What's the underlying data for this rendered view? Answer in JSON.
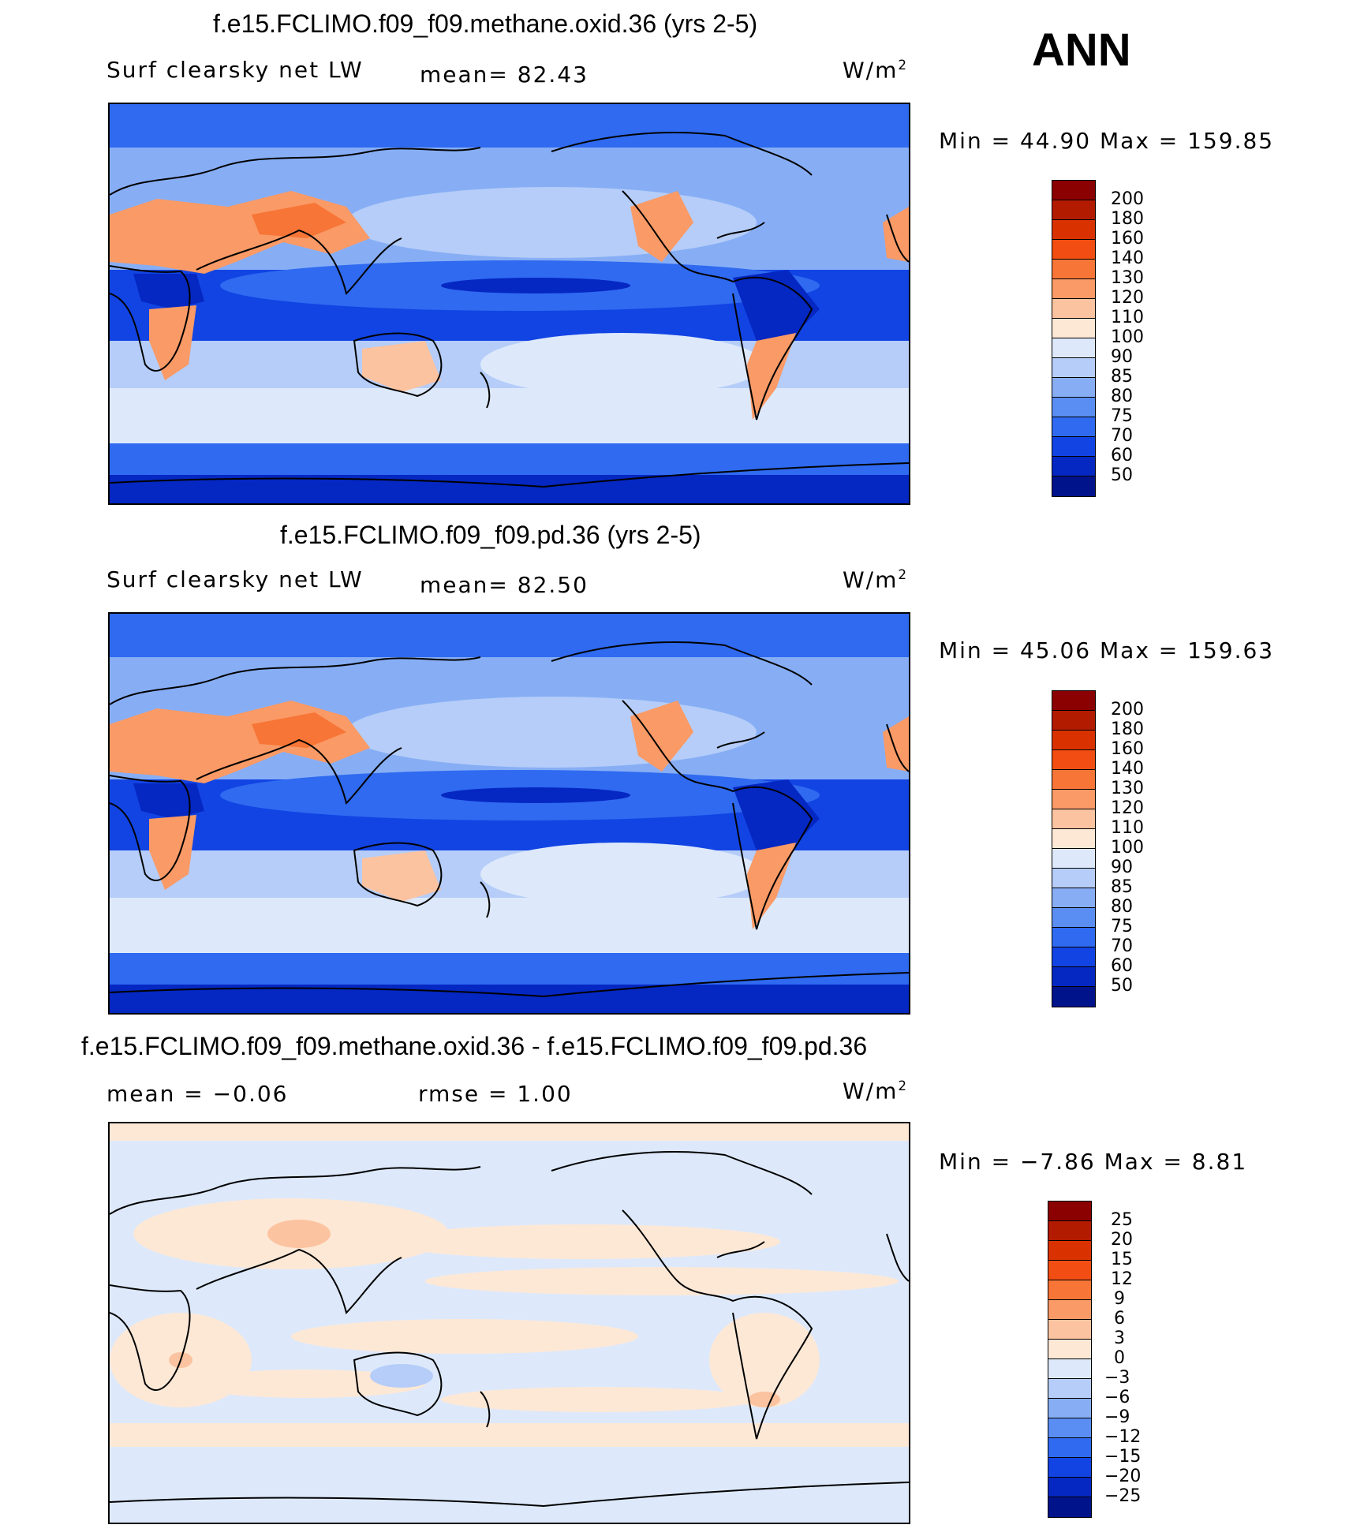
{
  "season": "ANN",
  "panels": [
    {
      "title": "f.e15.FCLIMO.f09_f09.methane.oxid.36 (yrs 2-5)",
      "left_label": "Surf clearsky net LW",
      "stat1": "mean=   82.43",
      "units": "W/m",
      "units_exp": "2",
      "minmax": "Min  =    44.90  Max  =  159.85"
    },
    {
      "title": "f.e15.FCLIMO.f09_f09.pd.36 (yrs 2-5)",
      "left_label": "Surf clearsky net LW",
      "stat1": "mean=   82.50",
      "units": "W/m",
      "units_exp": "2",
      "minmax": "Min  =    45.06  Max  =  159.63"
    },
    {
      "title": "f.e15.FCLIMO.f09_f09.methane.oxid.36 - f.e15.FCLIMO.f09_f09.pd.36",
      "left_label": "mean  =   −0.06",
      "stat1": "rmse  =    1.00",
      "units": "W/m",
      "units_exp": "2",
      "minmax": "Min  =   −7.86  Max  =     8.81"
    }
  ],
  "colorbars": {
    "field": {
      "labels": [
        "200",
        "180",
        "160",
        "140",
        "130",
        "120",
        "110",
        "100",
        "90",
        "85",
        "80",
        "75",
        "70",
        "60",
        "50"
      ],
      "colors": [
        "#8b0000",
        "#b31b00",
        "#d93200",
        "#f24e14",
        "#f77536",
        "#fa9a66",
        "#fcc3a0",
        "#fde8d6",
        "#dde9fb",
        "#b5cdf8",
        "#87aef5",
        "#5a8ef2",
        "#2f6af0",
        "#1244e3",
        "#0527c2",
        "#00138a"
      ]
    },
    "diff": {
      "labels": [
        "25",
        "20",
        "15",
        "12",
        "9",
        "6",
        "3",
        "0",
        "−3",
        "−6",
        "−9",
        "−12",
        "−15",
        "−20",
        "−25"
      ],
      "colors": [
        "#8b0000",
        "#b31b00",
        "#d93200",
        "#f24e14",
        "#f77536",
        "#fa9a66",
        "#fcc3a0",
        "#fde8d6",
        "#dde9fb",
        "#b5cdf8",
        "#87aef5",
        "#5a8ef2",
        "#2f6af0",
        "#1244e3",
        "#0527c2",
        "#00138a"
      ]
    }
  }
}
